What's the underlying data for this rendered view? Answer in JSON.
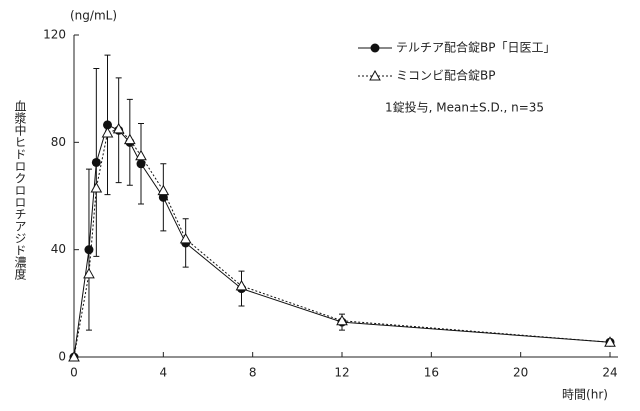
{
  "chart_data": {
    "type": "line",
    "y_unit": "(ng/mL)",
    "y_label": "血漿中ヒドロクロロチアジド濃度",
    "x_label": "時間(hr)",
    "annotation": "1錠投与, Mean±S.D., n=35",
    "xlim": [
      0,
      24
    ],
    "xticks": [
      0,
      4,
      8,
      12,
      16,
      20,
      24
    ],
    "ylim": [
      0,
      120
    ],
    "yticks": [
      0,
      40,
      80,
      120
    ],
    "series": [
      {
        "name": "テルチア配合錠BP「日医工」",
        "color": "#111111",
        "marker": "circle",
        "dash": false,
        "x": [
          0,
          0.67,
          1,
          1.5,
          2,
          2.5,
          3,
          4,
          5,
          7.5,
          12,
          24
        ],
        "values": [
          0,
          40,
          72.5,
          86.5,
          84.5,
          80,
          72,
          59.5,
          42.5,
          25.5,
          13,
          5.5
        ],
        "errors": [
          0,
          30,
          35,
          26,
          19.5,
          16,
          15,
          12.5,
          9,
          6.5,
          3,
          1
        ]
      },
      {
        "name": "ミコンビ配合錠BP",
        "color": "#111111",
        "marker": "triangle",
        "dash": true,
        "x": [
          0,
          0.67,
          1,
          1.5,
          2,
          2.5,
          3,
          4,
          5,
          7.5,
          12,
          24
        ],
        "values": [
          0,
          31,
          63,
          83.5,
          85,
          81,
          75,
          62,
          44,
          26.5,
          13.5,
          5.5
        ]
      }
    ]
  }
}
